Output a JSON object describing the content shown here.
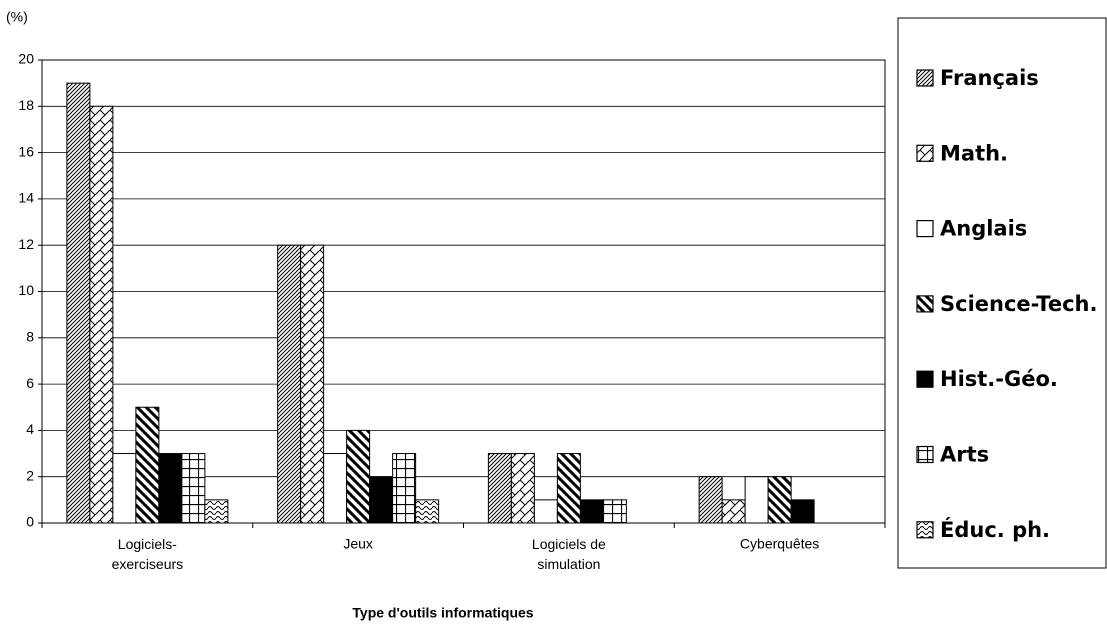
{
  "chart_data": {
    "type": "bar",
    "y_unit_label": "(%)",
    "x_axis_label": "Type d'outils informatiques",
    "categories": [
      "Logiciels-exerciseurs",
      "Jeux",
      "Logiciels de simulation",
      "Cyberquêtes"
    ],
    "series": [
      {
        "name": "Français",
        "color": "#000000",
        "pattern": "diagonal",
        "values": [
          19,
          12,
          3,
          2
        ]
      },
      {
        "name": "Math.",
        "color": "#000000",
        "pattern": "crosshatch",
        "values": [
          18,
          12,
          3,
          1
        ]
      },
      {
        "name": "Anglais",
        "color": "#000000",
        "pattern": "blank",
        "values": [
          3,
          3,
          1,
          2
        ]
      },
      {
        "name": "Science-Tech.",
        "color": "#000000",
        "pattern": "thick-backslash",
        "values": [
          5,
          4,
          3,
          2
        ]
      },
      {
        "name": "Hist.-Géo.",
        "color": "#000000",
        "pattern": "solid",
        "values": [
          3,
          2,
          1,
          1
        ]
      },
      {
        "name": "Arts",
        "color": "#000000",
        "pattern": "grid",
        "values": [
          3,
          3,
          1,
          0
        ]
      },
      {
        "name": "Éduc. ph.",
        "color": "#000000",
        "pattern": "wave",
        "values": [
          1,
          1,
          0,
          0
        ]
      }
    ],
    "ylim": [
      0,
      20
    ],
    "yticks": [
      0,
      2,
      4,
      6,
      8,
      10,
      12,
      14,
      16,
      18,
      20
    ],
    "grid": true,
    "legend": "right"
  }
}
